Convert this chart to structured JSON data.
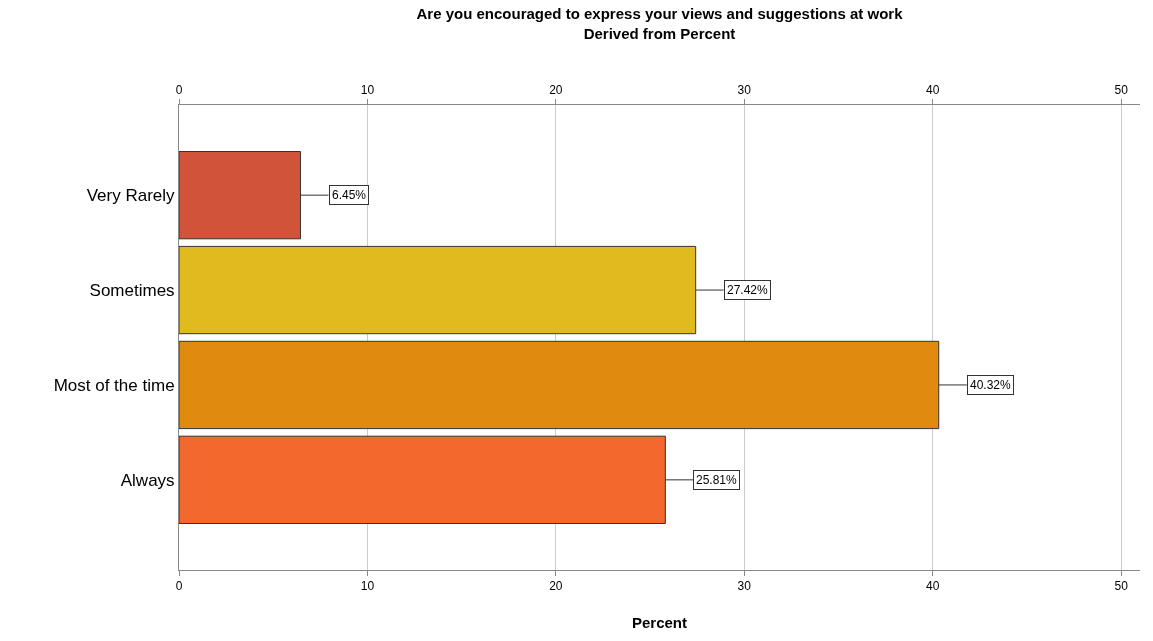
{
  "chart_data": {
    "type": "bar",
    "orientation": "horizontal",
    "title": "Are you encouraged to express your views and suggestions at work",
    "subtitle": "Derived from Percent",
    "xlabel": "Percent",
    "categories": [
      "Very Rarely",
      "Sometimes",
      "Most of the time",
      "Always"
    ],
    "values": [
      6.45,
      27.42,
      40.32,
      25.81
    ],
    "value_labels": [
      "6.45%",
      "27.42%",
      "40.32%",
      "25.81%"
    ],
    "colors": [
      "#d0533a",
      "#e0bb20",
      "#e08a10",
      "#f2682d"
    ],
    "xlim": [
      0,
      51
    ],
    "xticks": [
      0,
      10,
      20,
      30,
      40,
      50
    ],
    "x2lim": [
      0,
      51
    ],
    "x2ticks": [
      0,
      10,
      20,
      30,
      40,
      50
    ],
    "grid": "x",
    "legend": false
  }
}
